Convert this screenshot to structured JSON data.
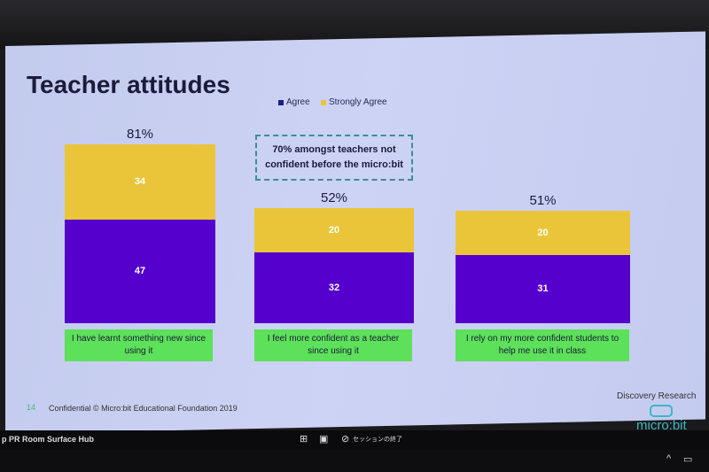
{
  "slide": {
    "title": "Teacher attitudes",
    "callout": "70% amongst teachers not confident before the micro:bit",
    "slide_number": "14",
    "footer": "Confidential © Micro:bit Educational Foundation 2019",
    "brand_text": "Discovery Research",
    "logo_text": "micro:bit"
  },
  "taskbar": {
    "device_name": "p PR Room Surface Hub",
    "end_session": "セッションの終了"
  },
  "colors": {
    "agree": "#5500cc",
    "strongly_agree": "#eac53a",
    "category_box": "#5de05a",
    "accent": "#3bb8c4"
  },
  "chart_data": {
    "type": "bar",
    "stacked": true,
    "categories": [
      "I have learnt something new since using it",
      "I feel more confident as a teacher since using it",
      "I rely on my more confident students to help me use it in class"
    ],
    "series": [
      {
        "name": "Agree",
        "values": [
          47,
          32,
          31
        ]
      },
      {
        "name": "Strongly Agree",
        "values": [
          34,
          20,
          20
        ]
      }
    ],
    "totals": [
      "81%",
      "52%",
      "51%"
    ],
    "legend": "top",
    "grid": false
  }
}
